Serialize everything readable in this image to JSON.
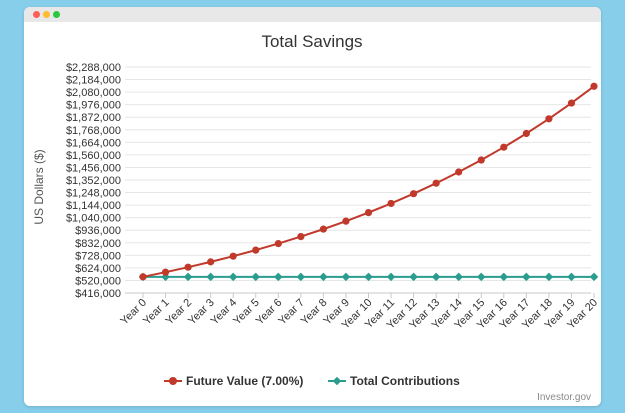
{
  "colors": {
    "background": "#87ceeb",
    "future_value": "#c0392b",
    "contributions": "#2a9d8f",
    "grid": "#e6e6e6",
    "axis_text": "#333333"
  },
  "window": {
    "controls": [
      "close-dot",
      "minimize-dot",
      "maximize-dot"
    ]
  },
  "credit": "Investor.gov",
  "chart_data": {
    "type": "line",
    "title": "Total Savings",
    "xlabel": "",
    "ylabel": "US Dollars ($)",
    "categories": [
      "Year 0",
      "Year 1",
      "Year 2",
      "Year 3",
      "Year 4",
      "Year 5",
      "Year 6",
      "Year 7",
      "Year 8",
      "Year 9",
      "Year 10",
      "Year 11",
      "Year 12",
      "Year 13",
      "Year 14",
      "Year 15",
      "Year 16",
      "Year 17",
      "Year 18",
      "Year 19",
      "Year 20"
    ],
    "ylim": [
      416000,
      2288000
    ],
    "yticks": [
      416000,
      520000,
      624000,
      728000,
      832000,
      936000,
      1040000,
      1144000,
      1248000,
      1352000,
      1456000,
      1560000,
      1664000,
      1768000,
      1872000,
      1976000,
      2080000,
      2184000,
      2288000
    ],
    "ytick_labels": [
      "$416,000",
      "$520,000",
      "$624,000",
      "$728,000",
      "$832,000",
      "$936,000",
      "$1,040,000",
      "$1,144,000",
      "$1,248,000",
      "$1,352,000",
      "$1,456,000",
      "$1,560,000",
      "$1,664,000",
      "$1,768,000",
      "$1,872,000",
      "$1,976,000",
      "$2,080,000",
      "$2,184,000",
      "$2,288,000"
    ],
    "grid": true,
    "legend": "bottom-center",
    "series": [
      {
        "name": "Future Value (7.00%)",
        "color": "#c0392b",
        "marker": "circle",
        "values": [
          550000,
          588500,
          629695,
          673774,
          720938,
          771404,
          825402,
          883180,
          945003,
          1011153,
          1081934,
          1157669,
          1238706,
          1325415,
          1418194,
          1517467,
          1623690,
          1737348,
          1858962,
          1989089,
          2128325
        ]
      },
      {
        "name": "Total Contributions",
        "color": "#2a9d8f",
        "marker": "diamond",
        "values": [
          550000,
          550000,
          550000,
          550000,
          550000,
          550000,
          550000,
          550000,
          550000,
          550000,
          550000,
          550000,
          550000,
          550000,
          550000,
          550000,
          550000,
          550000,
          550000,
          550000,
          550000
        ]
      }
    ]
  }
}
